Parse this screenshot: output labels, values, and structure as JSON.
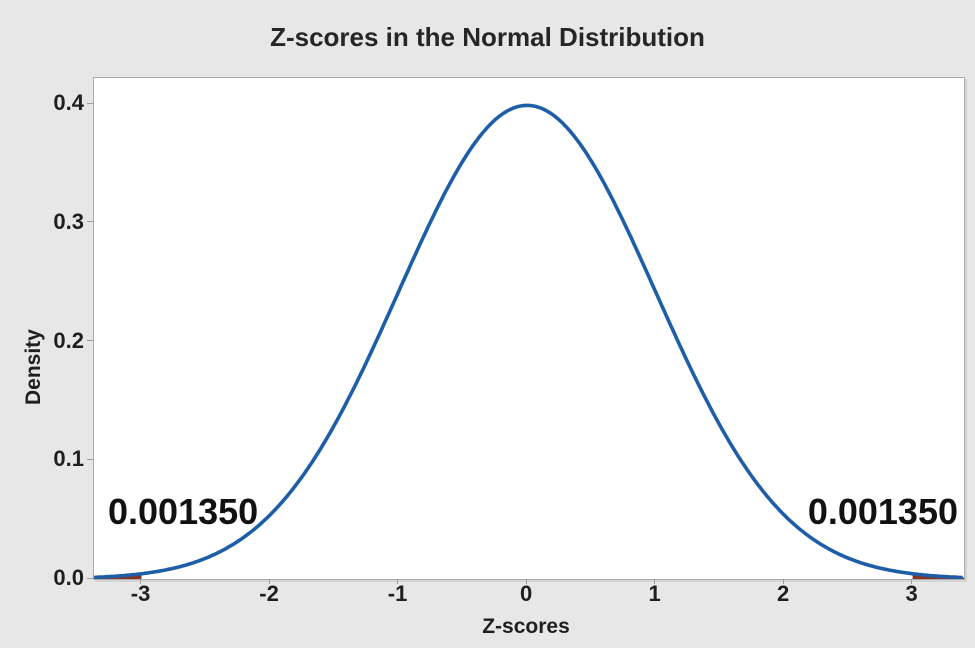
{
  "figure": {
    "bg_color": "#E7E7E7",
    "plot_bg_color": "#FFFFFF",
    "plot_border_color": "#ABABAB",
    "tick_color": "#9E9E9E",
    "text_color": "#1F1F1F"
  },
  "chart_data": {
    "type": "area",
    "title": "Z-scores in the Normal Distribution",
    "xlabel": "Z-scores",
    "ylabel": "Density",
    "x_tick_values": [
      -3,
      -2,
      -1,
      0,
      1,
      2,
      3
    ],
    "x_tick_labels": [
      "-3",
      "-2",
      "-1",
      "0",
      "1",
      "2",
      "3"
    ],
    "y_tick_values": [
      0.0,
      0.1,
      0.2,
      0.3,
      0.4
    ],
    "y_tick_labels": [
      "0.0",
      "0.1",
      "0.2",
      "0.3",
      "0.4"
    ],
    "xlim": [
      -3.37,
      3.4
    ],
    "ylim": [
      0,
      0.422
    ],
    "grid": false,
    "legend": false,
    "curve": {
      "distribution": "normal",
      "mean": 0,
      "sd": 1,
      "peak_density": 0.39894,
      "color": "#1E5EA8",
      "line_width": 3.6
    },
    "tails": [
      {
        "side": "left",
        "cutoff": -3,
        "area": 0.00135,
        "label": "0.001350",
        "fill_color": "#8B3221"
      },
      {
        "side": "right",
        "cutoff": 3,
        "area": 0.00135,
        "label": "0.001350",
        "fill_color": "#8B3221"
      }
    ]
  }
}
